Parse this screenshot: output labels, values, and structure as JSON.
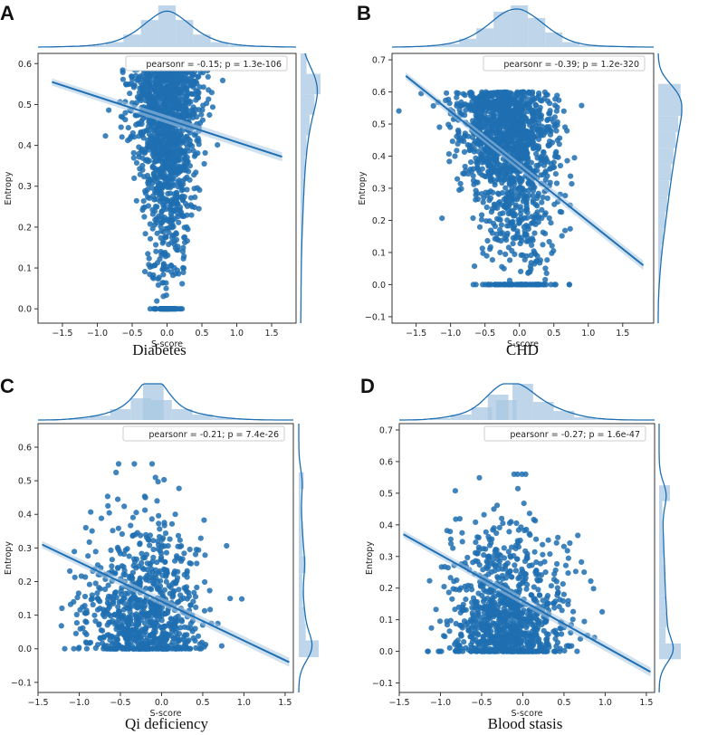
{
  "figure": {
    "point_color": "#1f6fb2",
    "marginal_fill": "#a9c8e3",
    "marginal_line": "#1f6fb2",
    "frame_color": "#333333"
  },
  "chart_data": [
    {
      "panel": "A",
      "caption": "Diabetes",
      "type": "scatter",
      "xlabel": "S-score",
      "ylabel": "Entropy",
      "xlim": [
        -1.85,
        1.85
      ],
      "ylim": [
        -0.035,
        0.625
      ],
      "xticks": [
        -1.5,
        -1.0,
        -0.5,
        0.0,
        0.5,
        1.0,
        1.5
      ],
      "xtick_labels": [
        "−1.5",
        "−1.0",
        "−0.5",
        "0.0",
        "0.5",
        "1.0",
        "1.5"
      ],
      "yticks": [
        0.0,
        0.1,
        0.2,
        0.3,
        0.4,
        0.5,
        0.6
      ],
      "ytick_labels": [
        "0.0",
        "0.1",
        "0.2",
        "0.3",
        "0.4",
        "0.5",
        "0.6"
      ],
      "annotation": "pearsonr = -0.15; p = 1.3e-106",
      "regression": {
        "x": [
          -1.65,
          1.65
        ],
        "y": [
          0.555,
          0.372
        ]
      },
      "cloud": {
        "x_center": 0.0,
        "x_spread": 0.3,
        "y_min": 0.0,
        "y_max": 0.6,
        "y_mode": 0.55,
        "n": 1400,
        "narrow_at_low_y": true
      },
      "marginal_x": {
        "bins": [
          -1.5,
          -1.25,
          -1.0,
          -0.75,
          -0.5,
          -0.25,
          0.0,
          0.25,
          0.5,
          0.75,
          1.0,
          1.25,
          1.5
        ],
        "density": [
          0.01,
          0.02,
          0.05,
          0.12,
          0.3,
          0.65,
          1.0,
          0.65,
          0.3,
          0.12,
          0.05,
          0.02,
          0.01
        ]
      },
      "marginal_y": {
        "bins": [
          0.0,
          0.05,
          0.1,
          0.15,
          0.2,
          0.25,
          0.3,
          0.35,
          0.4,
          0.45,
          0.5,
          0.55,
          0.6
        ],
        "density": [
          0.02,
          0.02,
          0.03,
          0.05,
          0.08,
          0.12,
          0.16,
          0.22,
          0.3,
          0.45,
          0.7,
          1.0,
          0.3
        ]
      }
    },
    {
      "panel": "B",
      "caption": "CHD",
      "type": "scatter",
      "xlabel": "S-score",
      "ylabel": "Entropy",
      "xlim": [
        -1.85,
        1.95
      ],
      "ylim": [
        -0.12,
        0.72
      ],
      "xticks": [
        -1.5,
        -1.0,
        -0.5,
        0.0,
        0.5,
        1.0,
        1.5
      ],
      "xtick_labels": [
        "−1.5",
        "−1.0",
        "−0.5",
        "0.0",
        "0.5",
        "1.0",
        "1.5"
      ],
      "yticks": [
        -0.1,
        0.0,
        0.1,
        0.2,
        0.3,
        0.4,
        0.5,
        0.6,
        0.7
      ],
      "ytick_labels": [
        "−0.1",
        "0.0",
        "0.1",
        "0.2",
        "0.3",
        "0.4",
        "0.5",
        "0.6",
        "0.7"
      ],
      "annotation": "pearsonr = -0.39; p = 1.2e-320",
      "regression": {
        "x": [
          -1.65,
          1.8
        ],
        "y": [
          0.65,
          0.06
        ]
      },
      "cloud": {
        "x_center": -0.1,
        "x_spread": 0.35,
        "y_min": 0.0,
        "y_max": 0.6,
        "y_mode": 0.5,
        "n": 1500,
        "narrow_at_low_y": false
      },
      "marginal_x": {
        "bins": [
          -1.5,
          -1.25,
          -1.0,
          -0.75,
          -0.5,
          -0.25,
          0.0,
          0.25,
          0.5,
          0.75,
          1.0,
          1.25,
          1.5
        ],
        "density": [
          0.01,
          0.03,
          0.08,
          0.2,
          0.45,
          0.85,
          1.0,
          0.7,
          0.35,
          0.12,
          0.04,
          0.02,
          0.01
        ]
      },
      "marginal_y": {
        "bins": [
          0.0,
          0.05,
          0.1,
          0.15,
          0.2,
          0.25,
          0.3,
          0.35,
          0.4,
          0.45,
          0.5,
          0.55,
          0.6
        ],
        "density": [
          0.04,
          0.08,
          0.14,
          0.22,
          0.3,
          0.38,
          0.46,
          0.55,
          0.65,
          0.75,
          0.85,
          1.0,
          0.95
        ]
      }
    },
    {
      "panel": "C",
      "caption": "Qi deficiency",
      "type": "scatter",
      "xlabel": "S-score",
      "ylabel": "Entropy",
      "xlim": [
        -1.5,
        1.6
      ],
      "ylim": [
        -0.13,
        0.67
      ],
      "xticks": [
        -1.5,
        -1.0,
        -0.5,
        0.0,
        0.5,
        1.0,
        1.5
      ],
      "xtick_labels": [
        "−1.5",
        "−1.0",
        "−0.5",
        "0.0",
        "0.5",
        "1.0",
        "1.5"
      ],
      "yticks": [
        -0.1,
        0.0,
        0.1,
        0.2,
        0.3,
        0.4,
        0.5,
        0.6
      ],
      "ytick_labels": [
        "−0.1",
        "0.0",
        "0.1",
        "0.2",
        "0.3",
        "0.4",
        "0.5",
        "0.6"
      ],
      "annotation": "pearsonr = -0.21; p = 7.4e-26",
      "regression": {
        "x": [
          -1.45,
          1.55
        ],
        "y": [
          0.31,
          -0.04
        ]
      },
      "cloud": {
        "x_center": -0.2,
        "x_spread": 0.35,
        "y_min": 0.0,
        "y_max": 0.55,
        "y_mode": 0.03,
        "n": 900,
        "narrow_at_low_y": false
      },
      "marginal_x": {
        "bins": [
          -1.0,
          -0.75,
          -0.5,
          -0.25,
          -0.1,
          0.0,
          0.25,
          0.5,
          0.75,
          1.0
        ],
        "density": [
          0.05,
          0.12,
          0.3,
          0.6,
          1.0,
          0.55,
          0.3,
          0.15,
          0.06,
          0.02
        ]
      },
      "marginal_y": {
        "bins": [
          0.0,
          0.05,
          0.1,
          0.15,
          0.2,
          0.25,
          0.3,
          0.35,
          0.4,
          0.45,
          0.5
        ],
        "density": [
          1.0,
          0.35,
          0.3,
          0.2,
          0.18,
          0.35,
          0.2,
          0.18,
          0.12,
          0.1,
          0.25
        ]
      }
    },
    {
      "panel": "D",
      "caption": "Blood stasis",
      "type": "scatter",
      "xlabel": "S-score",
      "ylabel": "Entropy",
      "xlim": [
        -1.5,
        1.6
      ],
      "ylim": [
        -0.13,
        0.72
      ],
      "xticks": [
        -1.5,
        -1.0,
        -0.5,
        0.0,
        0.5,
        1.0,
        1.5
      ],
      "xtick_labels": [
        "−1.5",
        "−1.0",
        "−0.5",
        "0.0",
        "0.5",
        "1.0",
        "1.5"
      ],
      "yticks": [
        -0.1,
        0.0,
        0.1,
        0.2,
        0.3,
        0.4,
        0.5,
        0.6,
        0.7
      ],
      "ytick_labels": [
        "−0.1",
        "0.0",
        "0.1",
        "0.2",
        "0.3",
        "0.4",
        "0.5",
        "0.6",
        "0.7"
      ],
      "annotation": "pearsonr = -0.27; p = 1.6e-47",
      "regression": {
        "x": [
          -1.45,
          1.55
        ],
        "y": [
          0.37,
          -0.065
        ]
      },
      "cloud": {
        "x_center": -0.2,
        "x_spread": 0.35,
        "y_min": 0.0,
        "y_max": 0.56,
        "y_mode": 0.03,
        "n": 1000,
        "narrow_at_low_y": false
      },
      "marginal_x": {
        "bins": [
          -1.0,
          -0.75,
          -0.5,
          -0.3,
          -0.2,
          0.0,
          0.25,
          0.5,
          0.75,
          1.0
        ],
        "density": [
          0.05,
          0.15,
          0.35,
          0.7,
          0.55,
          1.0,
          0.5,
          0.25,
          0.08,
          0.02
        ]
      },
      "marginal_y": {
        "bins": [
          0.0,
          0.05,
          0.1,
          0.15,
          0.2,
          0.25,
          0.3,
          0.35,
          0.4,
          0.45,
          0.5
        ],
        "density": [
          1.0,
          0.3,
          0.35,
          0.3,
          0.25,
          0.25,
          0.2,
          0.2,
          0.15,
          0.15,
          0.5
        ]
      }
    }
  ]
}
